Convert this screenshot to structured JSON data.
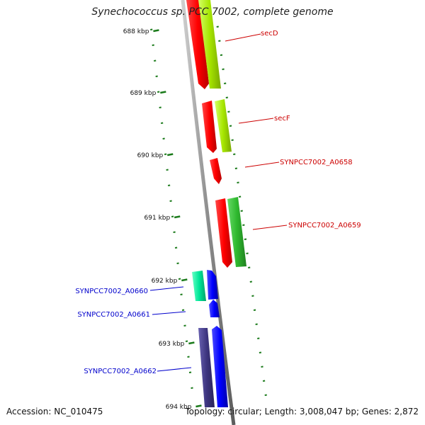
{
  "title": "Synechococcus sp. PCC 7002, complete genome",
  "footer": {
    "accession": "Accession: NC_010475",
    "topology": "Topology: circular; Length: 3,008,047 bp; Genes: 2,872"
  },
  "ticks": [
    "688 kbp",
    "689 kbp",
    "690 kbp",
    "691 kbp",
    "692 kbp",
    "693 kbp",
    "694 kbp"
  ],
  "genes": [
    {
      "name": "secD",
      "color": "#cc0000"
    },
    {
      "name": "secF",
      "color": "#cc0000"
    },
    {
      "name": "SYNPCC7002_A0658",
      "color": "#cc0000"
    },
    {
      "name": "SYNPCC7002_A0659",
      "color": "#cc0000"
    },
    {
      "name": "SYNPCC7002_A0660",
      "color": "#0000cc"
    },
    {
      "name": "SYNPCC7002_A0661",
      "color": "#0000cc"
    },
    {
      "name": "SYNPCC7002_A0662",
      "color": "#0000cc"
    }
  ],
  "colors": {
    "forward_cds": "#ff0000",
    "reverse_cds": "#0000ff",
    "cog_lime": "#a6e600",
    "cog_green": "#2eb82e",
    "cog_teal": "#00e699",
    "cog_purple": "#3d3580",
    "tick_green": "#1a7a1a",
    "backbone": "#8c8c8c"
  }
}
